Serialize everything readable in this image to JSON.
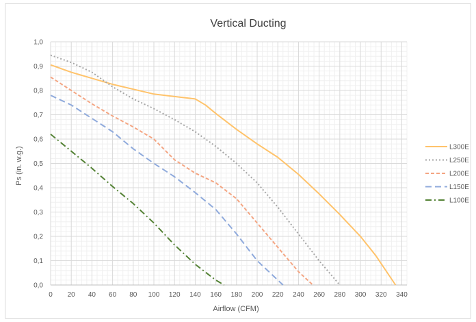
{
  "chart_data": {
    "type": "line",
    "title": "Vertical Ducting",
    "xlabel": "Airflow (CFM)",
    "ylabel": "Ps (in. w.g.)",
    "xlim": [
      0,
      345
    ],
    "ylim": [
      0,
      1.0
    ],
    "x_ticks": [
      "0",
      "20",
      "40",
      "60",
      "80",
      "100",
      "120",
      "140",
      "160",
      "180",
      "200",
      "220",
      "240",
      "260",
      "280",
      "300",
      "320",
      "340"
    ],
    "y_ticks": [
      "0,0",
      "0,1",
      "0,2",
      "0,3",
      "0,4",
      "0,5",
      "0,6",
      "0,7",
      "0,8",
      "0,9",
      "1,0"
    ],
    "grid": true,
    "legend_position": "right",
    "series": [
      {
        "name": "L300E",
        "color": "#ffc36b",
        "dash": "solid",
        "x": [
          0,
          20,
          40,
          60,
          80,
          100,
          120,
          140,
          150,
          160,
          180,
          200,
          220,
          240,
          260,
          280,
          300,
          315,
          334
        ],
        "y": [
          0.905,
          0.875,
          0.85,
          0.825,
          0.805,
          0.785,
          0.775,
          0.765,
          0.74,
          0.705,
          0.64,
          0.58,
          0.525,
          0.455,
          0.375,
          0.29,
          0.2,
          0.12,
          0.0
        ]
      },
      {
        "name": "L250E",
        "color": "#a6a6a6",
        "dash": "dot",
        "x": [
          0,
          20,
          40,
          60,
          80,
          100,
          120,
          140,
          160,
          180,
          200,
          220,
          240,
          260,
          280
        ],
        "y": [
          0.945,
          0.915,
          0.875,
          0.815,
          0.765,
          0.725,
          0.68,
          0.63,
          0.57,
          0.5,
          0.42,
          0.32,
          0.21,
          0.1,
          0.0
        ]
      },
      {
        "name": "L200E",
        "color": "#f4a582",
        "dash": "dash-short",
        "x": [
          0,
          20,
          40,
          60,
          80,
          100,
          120,
          140,
          160,
          180,
          200,
          220,
          240,
          254
        ],
        "y": [
          0.855,
          0.8,
          0.745,
          0.695,
          0.65,
          0.6,
          0.515,
          0.46,
          0.42,
          0.355,
          0.255,
          0.155,
          0.055,
          0.0
        ]
      },
      {
        "name": "L150E",
        "color": "#8faadc",
        "dash": "dash-long",
        "x": [
          0,
          20,
          40,
          60,
          80,
          100,
          120,
          140,
          160,
          180,
          200,
          225
        ],
        "y": [
          0.78,
          0.74,
          0.685,
          0.63,
          0.56,
          0.5,
          0.445,
          0.38,
          0.31,
          0.21,
          0.1,
          0.0
        ]
      },
      {
        "name": "L100E",
        "color": "#548235",
        "dash": "dash-dot",
        "x": [
          0,
          20,
          40,
          60,
          80,
          100,
          120,
          140,
          160,
          168
        ],
        "y": [
          0.62,
          0.55,
          0.48,
          0.405,
          0.335,
          0.255,
          0.165,
          0.085,
          0.02,
          0.0
        ]
      }
    ]
  }
}
